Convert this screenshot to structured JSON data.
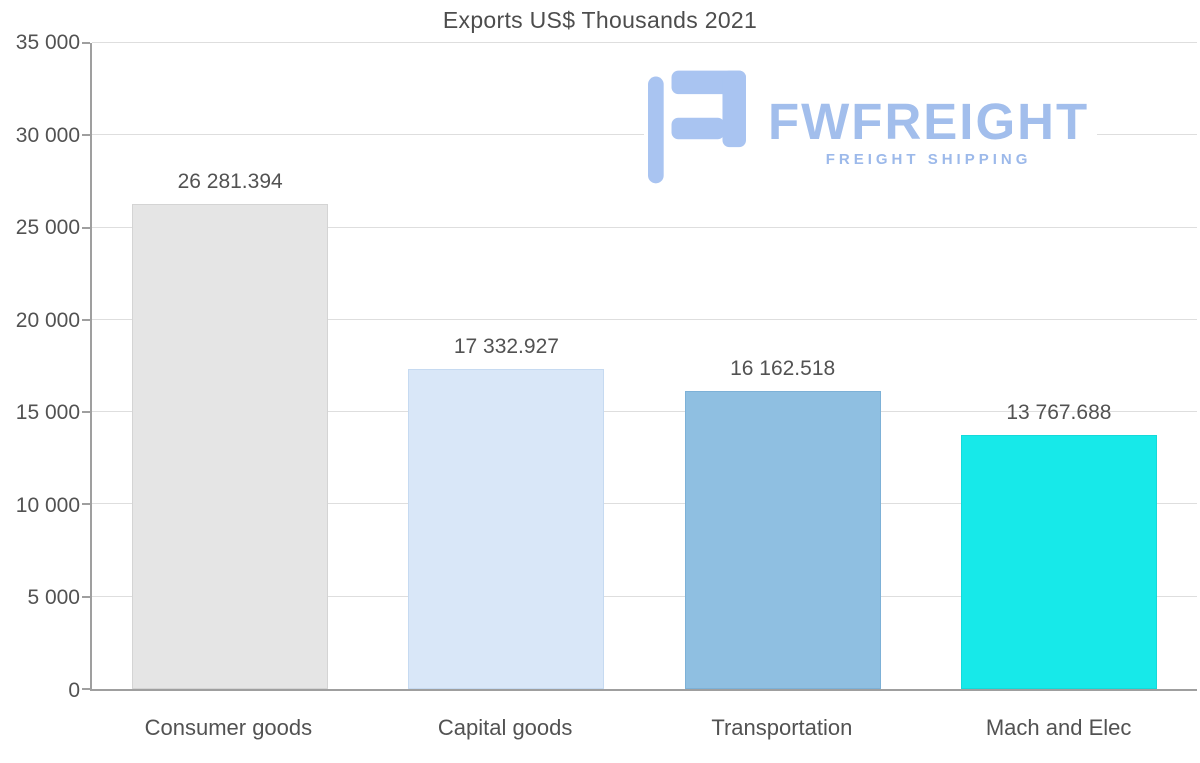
{
  "logo": {
    "wordmark": "FWFREIGHT",
    "tagline": "FREIGHT SHIPPING",
    "wordmark_color": "#a2beec",
    "tagline_color": "#9cb9ea",
    "glyph_color": "#a9c4f1"
  },
  "chart_data": {
    "type": "bar",
    "title": "Exports US$ Thousands 2021",
    "categories": [
      "Consumer goods",
      "Capital goods",
      "Transportation",
      "Mach and Elec"
    ],
    "values": [
      26281.394,
      17332.927,
      16162.518,
      13767.688
    ],
    "value_labels": [
      "26 281.394",
      "17 332.927",
      "16 162.518",
      "13 767.688"
    ],
    "bar_colors": [
      "#e5e5e5",
      "#d9e7f8",
      "#8fbfe1",
      "#17e9e9"
    ],
    "bar_border_colors": [
      "#d4d4d4",
      "#c6daf1",
      "#7db1d7",
      "#14dada"
    ],
    "xlabel": "",
    "ylabel": "",
    "ylim": [
      0,
      35000
    ],
    "yticks": [
      0,
      5000,
      10000,
      15000,
      20000,
      25000,
      30000,
      35000
    ],
    "ytick_labels": [
      "0",
      "5 000",
      "10 000",
      "15 000",
      "20 000",
      "25 000",
      "30 000",
      "35 000"
    ],
    "grid": true,
    "legend": false,
    "text_color": "#525252",
    "gridline_color": "#dedede",
    "axis_color": "#9f9f9f"
  }
}
